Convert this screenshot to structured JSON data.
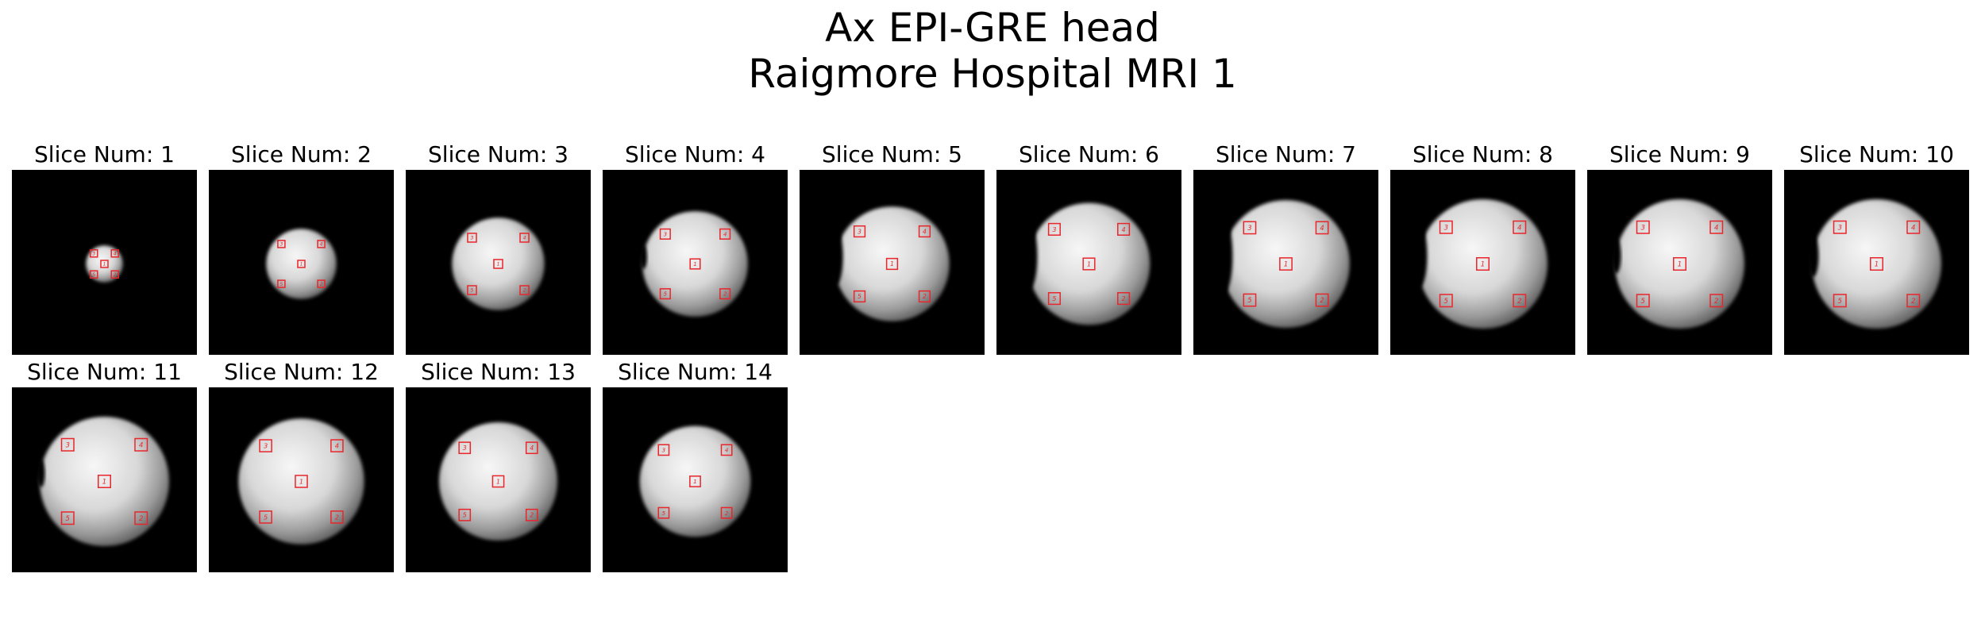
{
  "figure": {
    "title_line1": "Ax EPI-GRE head",
    "title_line2": "Raigmore Hospital MRI 1",
    "roi_color": "#e8262b",
    "roi_labels": [
      "1",
      "2",
      "3",
      "4",
      "5"
    ]
  },
  "panels": [
    {
      "label": "Slice Num: 1",
      "phantom_scale": 0.2,
      "edge_artifact": 0.0
    },
    {
      "label": "Slice Num: 2",
      "phantom_scale": 0.38,
      "edge_artifact": 0.0
    },
    {
      "label": "Slice Num: 3",
      "phantom_scale": 0.5,
      "edge_artifact": 0.0
    },
    {
      "label": "Slice Num: 4",
      "phantom_scale": 0.57,
      "edge_artifact": 0.3
    },
    {
      "label": "Slice Num: 5",
      "phantom_scale": 0.62,
      "edge_artifact": 0.8
    },
    {
      "label": "Slice Num: 6",
      "phantom_scale": 0.66,
      "edge_artifact": 0.9
    },
    {
      "label": "Slice Num: 7",
      "phantom_scale": 0.69,
      "edge_artifact": 1.0
    },
    {
      "label": "Slice Num: 8",
      "phantom_scale": 0.7,
      "edge_artifact": 0.8
    },
    {
      "label": "Slice Num: 9",
      "phantom_scale": 0.7,
      "edge_artifact": 0.4
    },
    {
      "label": "Slice Num: 10",
      "phantom_scale": 0.7,
      "edge_artifact": 0.5
    },
    {
      "label": "Slice Num: 11",
      "phantom_scale": 0.7,
      "edge_artifact": 0.3
    },
    {
      "label": "Slice Num: 12",
      "phantom_scale": 0.68,
      "edge_artifact": 0.0
    },
    {
      "label": "Slice Num: 13",
      "phantom_scale": 0.64,
      "edge_artifact": 0.0
    },
    {
      "label": "Slice Num: 14",
      "phantom_scale": 0.6,
      "edge_artifact": 0.0
    }
  ]
}
